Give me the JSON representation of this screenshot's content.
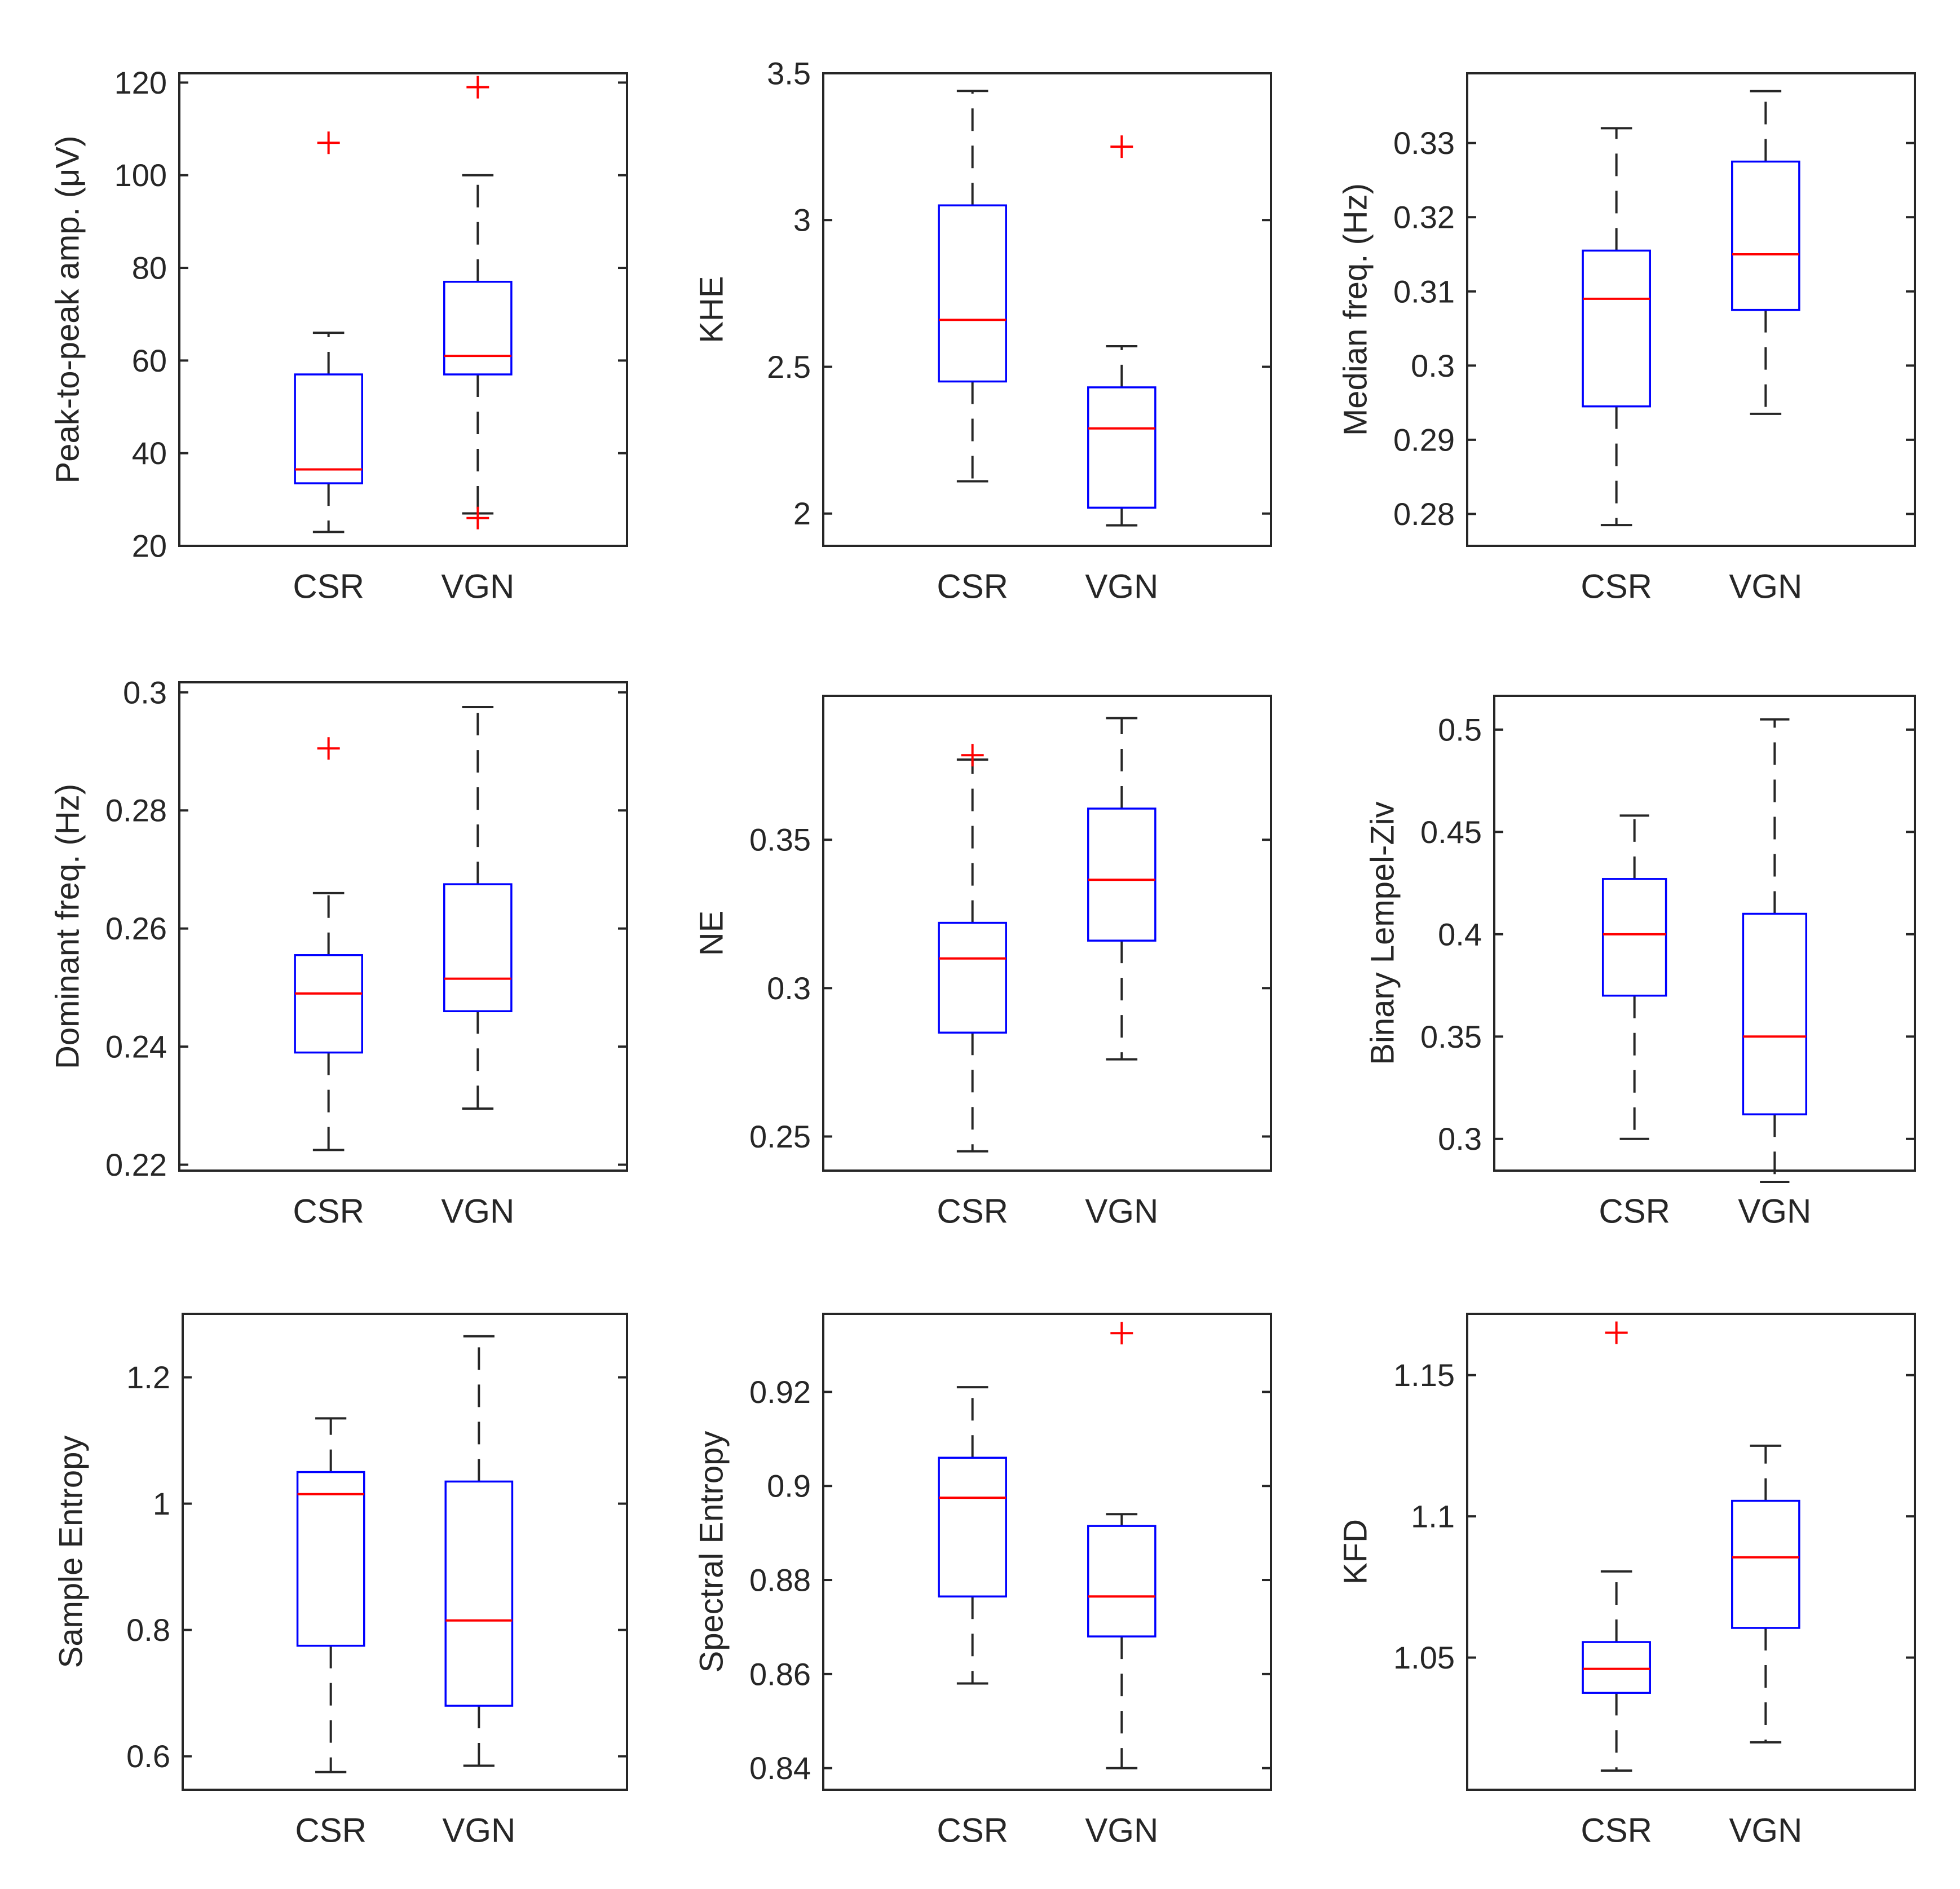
{
  "chart_data": [
    {
      "type": "boxplot",
      "ylabel": "Peak-to-peak amp. (μV)",
      "categories": [
        "CSR",
        "VGN"
      ],
      "ylim": [
        20,
        122
      ],
      "yticks": [
        20,
        40,
        60,
        80,
        100,
        120
      ],
      "ytick_labels": [
        "20",
        "40",
        "60",
        "80",
        "100",
        "120"
      ],
      "boxes": [
        {
          "name": "CSR",
          "whisker_low": 23,
          "q1": 33.5,
          "median": 36.5,
          "q3": 57,
          "whisker_high": 66,
          "outliers": [
            107
          ]
        },
        {
          "name": "VGN",
          "whisker_low": 27,
          "q1": 57,
          "median": 61,
          "q3": 77,
          "whisker_high": 100,
          "outliers": [
            119,
            26
          ]
        }
      ]
    },
    {
      "type": "boxplot",
      "ylabel": "KHE",
      "categories": [
        "CSR",
        "VGN"
      ],
      "ylim": [
        1.89,
        3.5
      ],
      "yticks": [
        2,
        2.5,
        3,
        3.5
      ],
      "ytick_labels": [
        "2",
        "2.5",
        "3",
        "3.5"
      ],
      "boxes": [
        {
          "name": "CSR",
          "whisker_low": 2.11,
          "q1": 2.45,
          "median": 2.66,
          "q3": 3.05,
          "whisker_high": 3.44,
          "outliers": []
        },
        {
          "name": "VGN",
          "whisker_low": 1.96,
          "q1": 2.02,
          "median": 2.29,
          "q3": 2.43,
          "whisker_high": 2.57,
          "outliers": [
            3.25
          ]
        }
      ]
    },
    {
      "type": "boxplot",
      "ylabel": "Median freq. (Hz)",
      "categories": [
        "CSR",
        "VGN"
      ],
      "ylim": [
        0.2757,
        0.3394
      ],
      "yticks": [
        0.28,
        0.29,
        0.3,
        0.31,
        0.32,
        0.33
      ],
      "ytick_labels": [
        "0.28",
        "0.29",
        "0.3",
        "0.31",
        "0.32",
        "0.33"
      ],
      "boxes": [
        {
          "name": "CSR",
          "whisker_low": 0.2785,
          "q1": 0.2945,
          "median": 0.309,
          "q3": 0.3155,
          "whisker_high": 0.332,
          "outliers": []
        },
        {
          "name": "VGN",
          "whisker_low": 0.2935,
          "q1": 0.3075,
          "median": 0.315,
          "q3": 0.3275,
          "whisker_high": 0.337,
          "outliers": []
        }
      ]
    },
    {
      "type": "boxplot",
      "ylabel": "Dominant freq. (Hz)",
      "categories": [
        "CSR",
        "VGN"
      ],
      "ylim": [
        0.219,
        0.3017
      ],
      "yticks": [
        0.22,
        0.24,
        0.26,
        0.28,
        0.3
      ],
      "ytick_labels": [
        "0.22",
        "0.24",
        "0.26",
        "0.28",
        "0.3"
      ],
      "boxes": [
        {
          "name": "CSR",
          "whisker_low": 0.2225,
          "q1": 0.239,
          "median": 0.249,
          "q3": 0.2555,
          "whisker_high": 0.266,
          "outliers": [
            0.2905
          ]
        },
        {
          "name": "VGN",
          "whisker_low": 0.2295,
          "q1": 0.246,
          "median": 0.2515,
          "q3": 0.2675,
          "whisker_high": 0.2975,
          "outliers": []
        }
      ]
    },
    {
      "type": "boxplot",
      "ylabel": "NE",
      "categories": [
        "CSR",
        "VGN"
      ],
      "ylim": [
        0.2385,
        0.3985
      ],
      "yticks": [
        0.25,
        0.3,
        0.35
      ],
      "ytick_labels": [
        "0.25",
        "0.3",
        "0.35"
      ],
      "boxes": [
        {
          "name": "CSR",
          "whisker_low": 0.245,
          "q1": 0.285,
          "median": 0.31,
          "q3": 0.322,
          "whisker_high": 0.377,
          "outliers": [
            0.3785
          ]
        },
        {
          "name": "VGN",
          "whisker_low": 0.276,
          "q1": 0.316,
          "median": 0.3365,
          "q3": 0.3605,
          "whisker_high": 0.391,
          "outliers": []
        }
      ]
    },
    {
      "type": "boxplot",
      "ylabel": "Binary Lempel-Ziv",
      "categories": [
        "CSR",
        "VGN"
      ],
      "ylim": [
        0.2845,
        0.5165
      ],
      "yticks": [
        0.3,
        0.35,
        0.4,
        0.45,
        0.5
      ],
      "ytick_labels": [
        "0.3",
        "0.35",
        "0.4",
        "0.45",
        "0.5"
      ],
      "boxes": [
        {
          "name": "CSR",
          "whisker_low": 0.3,
          "q1": 0.37,
          "median": 0.4,
          "q3": 0.427,
          "whisker_high": 0.458,
          "outliers": []
        },
        {
          "name": "VGN",
          "whisker_low": 0.279,
          "q1": 0.312,
          "median": 0.35,
          "q3": 0.41,
          "whisker_high": 0.505,
          "outliers": []
        }
      ]
    },
    {
      "type": "boxplot",
      "ylabel": "Sample Entropy",
      "categories": [
        "CSR",
        "VGN"
      ],
      "ylim": [
        0.547,
        1.3005
      ],
      "yticks": [
        0.6,
        0.8,
        1,
        1.2
      ],
      "ytick_labels": [
        "0.6",
        "0.8",
        "1",
        "1.2"
      ],
      "boxes": [
        {
          "name": "CSR",
          "whisker_low": 0.575,
          "q1": 0.775,
          "median": 1.015,
          "q3": 1.05,
          "whisker_high": 1.135,
          "outliers": []
        },
        {
          "name": "VGN",
          "whisker_low": 0.585,
          "q1": 0.68,
          "median": 0.815,
          "q3": 1.035,
          "whisker_high": 1.265,
          "outliers": []
        }
      ]
    },
    {
      "type": "boxplot",
      "ylabel": "Spectral Entropy",
      "categories": [
        "CSR",
        "VGN"
      ],
      "ylim": [
        0.8354,
        0.9366
      ],
      "yticks": [
        0.84,
        0.86,
        0.88,
        0.9,
        0.92
      ],
      "ytick_labels": [
        "0.84",
        "0.86",
        "0.88",
        "0.9",
        "0.92"
      ],
      "boxes": [
        {
          "name": "CSR",
          "whisker_low": 0.858,
          "q1": 0.8765,
          "median": 0.8975,
          "q3": 0.906,
          "whisker_high": 0.921,
          "outliers": []
        },
        {
          "name": "VGN",
          "whisker_low": 0.84,
          "q1": 0.868,
          "median": 0.8765,
          "q3": 0.8915,
          "whisker_high": 0.894,
          "outliers": [
            0.9325
          ]
        }
      ]
    },
    {
      "type": "boxplot",
      "ylabel": "KFD",
      "categories": [
        "CSR",
        "VGN"
      ],
      "ylim": [
        1.0032,
        1.1717
      ],
      "yticks": [
        1.05,
        1.1,
        1.15
      ],
      "ytick_labels": [
        "1.05",
        "1.1",
        "1.15"
      ],
      "boxes": [
        {
          "name": "CSR",
          "whisker_low": 1.01,
          "q1": 1.0375,
          "median": 1.046,
          "q3": 1.0555,
          "whisker_high": 1.0805,
          "outliers": [
            1.165
          ]
        },
        {
          "name": "VGN",
          "whisker_low": 1.02,
          "q1": 1.0605,
          "median": 1.0855,
          "q3": 1.1055,
          "whisker_high": 1.125,
          "outliers": []
        }
      ]
    }
  ]
}
